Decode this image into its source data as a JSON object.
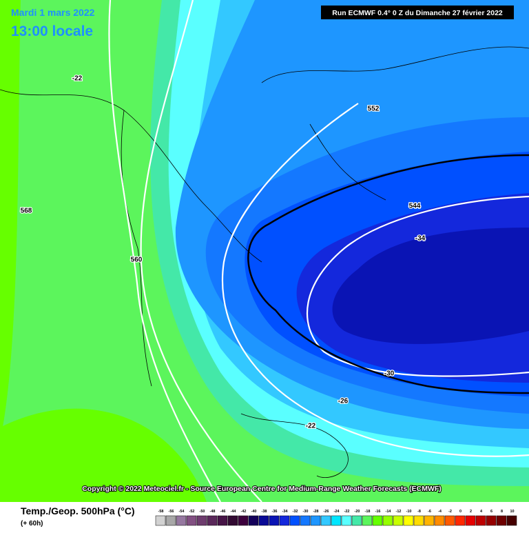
{
  "header": {
    "date": "Mardi 1 mars 2022",
    "time": "13:00 locale",
    "run": "Run ECMWF 0.4° 0 Z du Dimanche 27 février 2022"
  },
  "copyright": "Copyright © 2022 Meteociel.fr - Source European Centre for Medium-Range Weather Forecasts (ECMWF)",
  "contour_labels": [
    -22,
    568,
    560,
    552,
    544,
    -34,
    -30,
    -26,
    -22
  ],
  "legend": {
    "title": "Temp./Geop. 500hPa (°C)",
    "lead": "(+ 60h)",
    "scale": [
      {
        "value": -58,
        "color": "#d2d2d2"
      },
      {
        "value": -56,
        "color": "#a8a8a8"
      },
      {
        "value": -54,
        "color": "#9678a0"
      },
      {
        "value": -52,
        "color": "#825082"
      },
      {
        "value": -50,
        "color": "#6e3c6e"
      },
      {
        "value": -48,
        "color": "#5a285a"
      },
      {
        "value": -46,
        "color": "#461446"
      },
      {
        "value": -44,
        "color": "#320a32"
      },
      {
        "value": -42,
        "color": "#3c003c"
      },
      {
        "value": -40,
        "color": "#14005a"
      },
      {
        "value": -38,
        "color": "#0a0a96"
      },
      {
        "value": -36,
        "color": "#0a14b4"
      },
      {
        "value": -34,
        "color": "#1428dc"
      },
      {
        "value": -32,
        "color": "#0050ff"
      },
      {
        "value": -30,
        "color": "#1478ff"
      },
      {
        "value": -28,
        "color": "#1e96ff"
      },
      {
        "value": -26,
        "color": "#33c8ff"
      },
      {
        "value": -24,
        "color": "#00e6ff"
      },
      {
        "value": -22,
        "color": "#5affff"
      },
      {
        "value": -20,
        "color": "#44e8a8"
      },
      {
        "value": -18,
        "color": "#5cf55c"
      },
      {
        "value": -16,
        "color": "#66ff00"
      },
      {
        "value": -14,
        "color": "#96ff00"
      },
      {
        "value": -12,
        "color": "#c8ff00"
      },
      {
        "value": -10,
        "color": "#ffff00"
      },
      {
        "value": -8,
        "color": "#ffdc00"
      },
      {
        "value": -6,
        "color": "#ffb400"
      },
      {
        "value": -4,
        "color": "#ff8c00"
      },
      {
        "value": -2,
        "color": "#ff5a00"
      },
      {
        "value": 0,
        "color": "#ff2800"
      },
      {
        "value": 2,
        "color": "#e60000"
      },
      {
        "value": 4,
        "color": "#be0000"
      },
      {
        "value": 6,
        "color": "#960000"
      },
      {
        "value": 8,
        "color": "#6e0000"
      },
      {
        "value": 10,
        "color": "#460000"
      }
    ]
  }
}
